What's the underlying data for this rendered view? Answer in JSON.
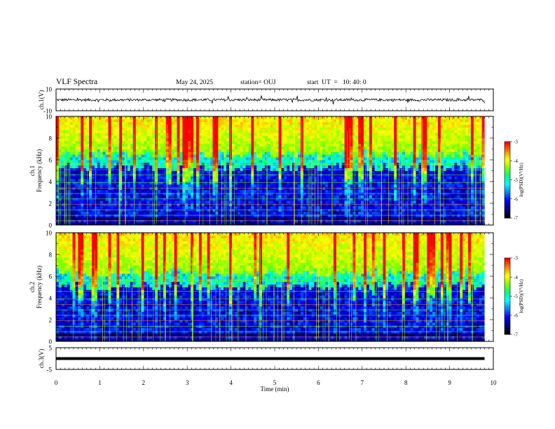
{
  "header": {
    "title": "VLF Spectra",
    "date": "May 24, 2025",
    "station": "station= OUJ",
    "start": "start  UT  =   10: 40: 0"
  },
  "chart_data": [
    {
      "type": "line",
      "name": "ch1_waveform",
      "ylabel": "ch.1(V)",
      "ylim": [
        -10,
        10
      ],
      "y_ticks": [
        "10",
        "-10"
      ],
      "x_range_min": [
        0,
        9.8
      ],
      "baseline": 0,
      "noise_amplitude": 1.2,
      "color": "#000000"
    },
    {
      "type": "heatmap",
      "name": "ch1_spectrogram",
      "ylabel_line1": "ch.1",
      "ylabel_line2": "Frequency (kHz)",
      "ylim": [
        0,
        10
      ],
      "y_ticks": [
        "0",
        "2",
        "4",
        "6",
        "8",
        "10"
      ],
      "x_range_min": [
        0,
        9.8
      ],
      "band_edge_khz": 6.5,
      "colorbar": {
        "label": "log(PSD)(V²/Hz)",
        "range": [
          -7,
          -3
        ],
        "ticks": [
          "-3",
          "-4",
          "-5",
          "-6",
          "-7"
        ]
      }
    },
    {
      "type": "heatmap",
      "name": "ch2_spectrogram",
      "ylabel_line1": "ch.2",
      "ylabel_line2": "Frequency (kHz)",
      "ylim": [
        0,
        10
      ],
      "y_ticks": [
        "0",
        "2",
        "4",
        "6",
        "8",
        "10"
      ],
      "x_range_min": [
        0,
        9.8
      ],
      "band_edge_khz": 6.3,
      "colorbar": {
        "label": "log(PSD)(V²/Hz)",
        "range": [
          -7,
          -3
        ],
        "ticks": [
          "-3",
          "-4",
          "-5",
          "-6",
          "-7"
        ]
      }
    },
    {
      "type": "line",
      "name": "ch3_waveform",
      "ylabel": "ch.3(V)",
      "ylim": [
        -5,
        5
      ],
      "y_ticks": [
        "5",
        "-5"
      ],
      "x_range_min": [
        0,
        9.8
      ],
      "baseline": 0,
      "noise_amplitude": 0,
      "color": "#000000"
    }
  ],
  "x_axis": {
    "label": "Time (min)",
    "ticks": [
      "0",
      "1",
      "2",
      "3",
      "4",
      "5",
      "6",
      "7",
      "8",
      "9",
      "10"
    ],
    "range": [
      0,
      10
    ]
  },
  "colormap": [
    "#000000",
    "#00007f",
    "#0000ff",
    "#0080ff",
    "#00ffff",
    "#00ff80",
    "#80ff00",
    "#ffff00",
    "#ff8000",
    "#ff0000",
    "#ffffff"
  ]
}
